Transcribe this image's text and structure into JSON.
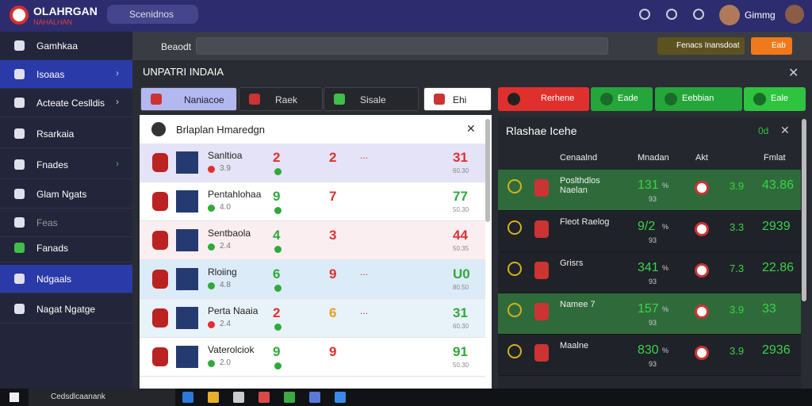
{
  "header": {
    "logo_title": "OLAHRGAN",
    "logo_subtitle": "NAHALHAN",
    "search": "Scenidnos",
    "user": "Gimmg"
  },
  "sidebar": {
    "items": [
      "Gamhkaa",
      "Isoaas",
      "Acteate Ceslldis",
      "Rsarkaia",
      "Fnades",
      "Glam Ngats",
      "Feas",
      "Fanads",
      "Ndgaals",
      "Nagat Ngatge"
    ]
  },
  "toolbar": {
    "search": "Beaodt",
    "button_1": "Fenacs Inansdoat",
    "button_2": "Eab"
  },
  "title": "UNPATRI INDAIA",
  "tabs": [
    "Naniacoe",
    "Raek",
    "Sisale",
    "Ehi"
  ],
  "left_panel": {
    "title": "Brlaplan Hmaredgn",
    "rows": [
      {
        "name": "Sanltioa",
        "sub": "3.9",
        "score_1": "2",
        "score_2": "2",
        "more": "...",
        "value": "31",
        "small": "60.30",
        "bg": "#e4e3f7",
        "color_1": "#e0302e",
        "color_2": "#e0302e",
        "value_color": "#e0302e"
      },
      {
        "name": "Pentahlohaa",
        "sub": "4.0",
        "score_1": "9",
        "score_2": "7",
        "value": "77",
        "small": "50.30",
        "bg": "#ffffff",
        "color_1": "#2eaa3a",
        "color_2": "#e0302e",
        "value_color": "#2eaa3a"
      },
      {
        "name": "Sentbaola",
        "sub": "2.4",
        "score_1": "4",
        "score_2": "3",
        "value": "44",
        "small": "50.35",
        "bg": "#fbeef1",
        "color_1": "#2eaa3a",
        "color_2": "#e0302e",
        "value_color": "#e0302e"
      },
      {
        "name": "Rloiing",
        "sub": "4.8",
        "score_1": "6",
        "score_2": "9",
        "more": "...",
        "value": "U0",
        "small": "80.50",
        "bg": "#dcebf8",
        "color_1": "#2eaa3a",
        "color_2": "#e0302e",
        "value_color": "#2eaa3a"
      },
      {
        "name": "Perta Naaia",
        "sub": "2.4",
        "score_1": "2",
        "score_2": "6",
        "more": "...",
        "value": "31",
        "small": "60.30",
        "bg": "#e8f2f9",
        "color_1": "#e0302e",
        "color_2": "#e8a020",
        "value_color": "#2eaa3a"
      },
      {
        "name": "Vaterolciok",
        "sub": "2.0",
        "score_1": "9",
        "score_2": "9",
        "value": "91",
        "small": "50.30",
        "bg": "#ffffff",
        "color_1": "#2eaa3a",
        "color_2": "#e0302e",
        "value_color": "#2eaa3a"
      }
    ]
  },
  "right_panel": {
    "tabs": [
      "Rerhene",
      "Eade",
      "Eebbian",
      "Eale"
    ],
    "title": "Rlashae Icehe",
    "badge": "0d",
    "columns": [
      "Cenaalnd",
      "Mnadan",
      "Akt",
      "Fmlat"
    ],
    "rows": [
      {
        "name": "Poslthdlos Naelan",
        "value": "131",
        "unit": "%",
        "small": "93",
        "code": "3.9",
        "total": "43.86",
        "bg": "#2f6b3a"
      },
      {
        "name": "Fleot Raelog",
        "value": "9/2",
        "unit": "%",
        "small": "93",
        "code": "3.3",
        "total": "2939",
        "bg": "#1f2228"
      },
      {
        "name": "Grisrs",
        "value": "341",
        "unit": "%",
        "small": "93",
        "code": "7.3",
        "total": "22.86",
        "bg": "#1f2228"
      },
      {
        "name": "Namee 7",
        "value": "157",
        "unit": "%",
        "small": "93",
        "code": "3.9",
        "total": "33",
        "bg": "#2f6b3a"
      },
      {
        "name": "Maalne",
        "value": "830",
        "unit": "%",
        "small": "93",
        "code": "3.9",
        "total": "2936",
        "bg": "#1f2228"
      }
    ]
  },
  "taskbar": {
    "search": "Cedsdlcaanank"
  }
}
